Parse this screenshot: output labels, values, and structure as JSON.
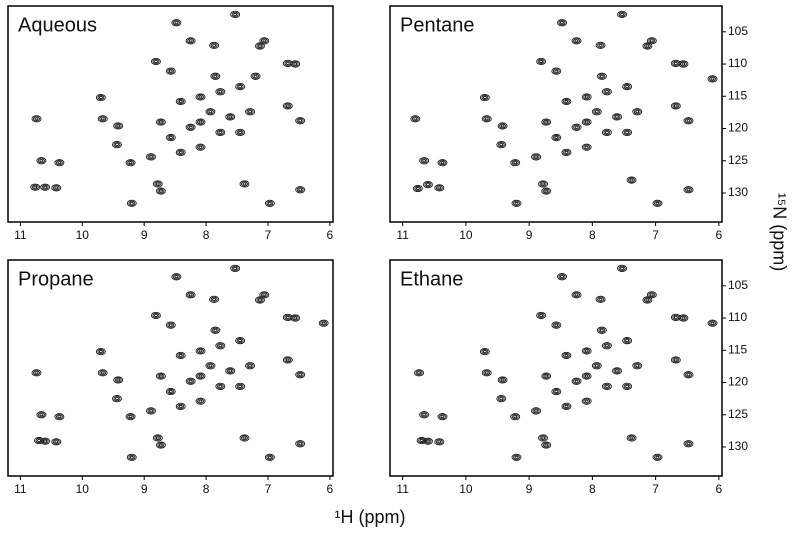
{
  "axis_labels": {
    "x": "¹H (ppm)",
    "y": "¹⁵N (ppm)"
  },
  "chart_data": [
    {
      "type": "scatter",
      "title": "Aqueous",
      "color": "#1a1a1a",
      "x": [
        10.74,
        10.76,
        10.6,
        10.42,
        10.37,
        10.66,
        9.7,
        9.67,
        9.42,
        9.44,
        9.2,
        8.78,
        8.73,
        8.48,
        8.25,
        7.87,
        7.53,
        7.38,
        7.06,
        6.68,
        6.56,
        6.68,
        6.48,
        6.48,
        6.97,
        7.13,
        8.81,
        8.57,
        8.89,
        9.22,
        8.09,
        8.41,
        8.09,
        7.77,
        7.45,
        7.93,
        8.25,
        7.77,
        8.57,
        8.09,
        7.61,
        7.29,
        8.73,
        8.41,
        7.45,
        7.85,
        7.2
      ],
      "values": [
        118.5,
        129.1,
        129.1,
        129.2,
        125.3,
        125,
        115.2,
        118.5,
        119.6,
        122.5,
        131.6,
        128.6,
        129.7,
        103.6,
        106.4,
        107.1,
        102.3,
        128.6,
        106.4,
        109.9,
        110,
        116.5,
        118.8,
        129.5,
        131.6,
        107.2,
        109.6,
        111.1,
        124.4,
        125.3,
        119,
        115.8,
        115.1,
        114.3,
        113.5,
        117.4,
        119.8,
        120.6,
        121.4,
        122.9,
        118.2,
        117.4,
        119,
        123.7,
        120.6,
        111.9,
        111.9
      ],
      "xlim": [
        11.2,
        5.95
      ],
      "ylim": [
        134.5,
        101
      ],
      "xticks": [
        11,
        10,
        9,
        8,
        7,
        6
      ]
    },
    {
      "type": "scatter",
      "title": "Pentane",
      "color": "#1a1a1a",
      "x": [
        10.8,
        10.76,
        10.6,
        10.42,
        10.37,
        10.66,
        9.7,
        9.67,
        9.42,
        9.44,
        9.2,
        8.78,
        8.73,
        8.48,
        8.25,
        7.87,
        7.53,
        7.38,
        7.06,
        6.68,
        6.56,
        6.68,
        6.48,
        6.48,
        6.97,
        7.13,
        8.81,
        8.57,
        8.89,
        9.22,
        8.09,
        8.41,
        8.09,
        7.77,
        7.45,
        7.93,
        8.25,
        7.77,
        8.57,
        8.09,
        7.61,
        7.29,
        8.73,
        8.41,
        7.45,
        7.85,
        6.1
      ],
      "values": [
        118.5,
        129.3,
        128.7,
        129.2,
        125.3,
        125,
        115.2,
        118.5,
        119.6,
        122.5,
        131.6,
        128.6,
        129.7,
        103.6,
        106.4,
        107.1,
        102.3,
        128,
        106.4,
        109.9,
        110,
        116.5,
        118.8,
        129.5,
        131.6,
        107.2,
        109.6,
        111.1,
        124.4,
        125.3,
        119,
        115.8,
        115.1,
        114.3,
        113.5,
        117.4,
        119.8,
        120.6,
        121.4,
        122.9,
        118.2,
        117.4,
        119,
        123.7,
        120.6,
        111.9,
        112.3
      ],
      "xlim": [
        11.2,
        5.95
      ],
      "ylim": [
        134.5,
        101
      ],
      "xticks": [
        11,
        10,
        9,
        8,
        7,
        6
      ],
      "yticks": [
        105,
        110,
        115,
        120,
        125,
        130
      ]
    },
    {
      "type": "scatter",
      "title": "Propane",
      "color": "#1a1a1a",
      "x": [
        10.74,
        10.7,
        10.6,
        10.42,
        10.37,
        10.66,
        9.7,
        9.67,
        9.42,
        9.44,
        9.2,
        8.78,
        8.73,
        8.48,
        8.25,
        7.87,
        7.53,
        7.38,
        7.06,
        6.68,
        6.56,
        6.68,
        6.48,
        6.48,
        6.97,
        7.13,
        8.81,
        8.57,
        8.89,
        9.22,
        8.09,
        8.41,
        8.09,
        7.77,
        7.45,
        7.93,
        8.25,
        7.77,
        8.57,
        8.09,
        7.61,
        7.29,
        8.73,
        8.41,
        7.45,
        7.85,
        6.1
      ],
      "values": [
        118.5,
        129,
        129.1,
        129.2,
        125.3,
        125,
        115.2,
        118.5,
        119.6,
        122.5,
        131.6,
        128.6,
        129.7,
        103.6,
        106.4,
        107.1,
        102.3,
        128.6,
        106.4,
        109.9,
        110,
        116.5,
        118.8,
        129.5,
        131.6,
        107.2,
        109.6,
        111.1,
        124.4,
        125.3,
        119,
        115.8,
        115.1,
        114.3,
        113.5,
        117.4,
        119.8,
        120.6,
        121.4,
        122.9,
        118.2,
        117.4,
        119,
        123.7,
        120.6,
        111.9,
        110.8
      ],
      "xlim": [
        11.2,
        5.95
      ],
      "ylim": [
        134.5,
        101
      ],
      "xticks": [
        11,
        10,
        9,
        8,
        7,
        6
      ]
    },
    {
      "type": "scatter",
      "title": "Ethane",
      "color": "#1a1a1a",
      "x": [
        10.74,
        10.7,
        10.6,
        10.42,
        10.37,
        10.66,
        9.7,
        9.67,
        9.42,
        9.44,
        9.2,
        8.78,
        8.73,
        8.48,
        8.25,
        7.87,
        7.53,
        7.38,
        7.06,
        6.68,
        6.56,
        6.68,
        6.48,
        6.48,
        6.97,
        7.13,
        8.81,
        8.57,
        8.89,
        9.22,
        8.09,
        8.41,
        8.09,
        7.77,
        7.45,
        7.93,
        8.25,
        7.77,
        8.57,
        8.09,
        7.61,
        7.29,
        8.73,
        8.41,
        7.45,
        7.85,
        6.1
      ],
      "values": [
        118.5,
        129,
        129.1,
        129.2,
        125.3,
        125,
        115.2,
        118.5,
        119.6,
        122.5,
        131.6,
        128.6,
        129.7,
        103.6,
        106.4,
        107.1,
        102.3,
        128.6,
        106.4,
        109.9,
        110,
        116.5,
        118.8,
        129.5,
        131.6,
        107.2,
        109.6,
        111.1,
        124.4,
        125.3,
        119,
        115.8,
        115.1,
        114.3,
        113.5,
        117.4,
        119.8,
        120.6,
        121.4,
        122.9,
        118.2,
        117.4,
        119,
        123.7,
        120.6,
        111.9,
        110.8
      ],
      "xlim": [
        11.2,
        5.95
      ],
      "ylim": [
        134.5,
        101
      ],
      "xticks": [
        11,
        10,
        9,
        8,
        7,
        6
      ],
      "yticks": [
        105,
        110,
        115,
        120,
        125,
        130
      ]
    }
  ]
}
